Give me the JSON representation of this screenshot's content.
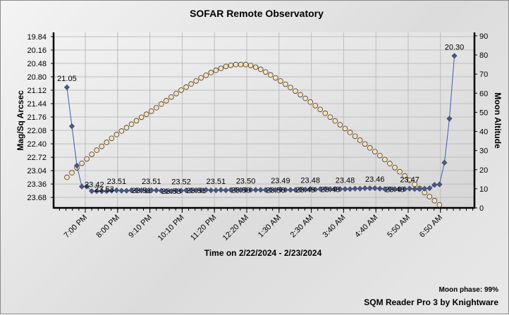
{
  "chart_data": {
    "type": "line",
    "title": "SOFAR Remote Observatory",
    "xlabel": "Time on 2/22/2024 - 2/23/2024",
    "ylabel": "Mag/Sq Arcsec",
    "y2label": "Moon Altitude",
    "y_ticks": [
      "19.84",
      "20.16",
      "20.48",
      "20.80",
      "21.12",
      "21.44",
      "21.76",
      "22.08",
      "22.40",
      "22.72",
      "23.04",
      "23.36",
      "23.68"
    ],
    "y_inverted": true,
    "ylim": [
      19.74,
      23.93
    ],
    "y2_ticks": [
      "0",
      "10",
      "20",
      "30",
      "40",
      "50",
      "60",
      "70",
      "80",
      "90"
    ],
    "y2lim": [
      0,
      91.8
    ],
    "x_tick_labels": [
      "7:00 PM",
      "8:00 PM",
      "9:10 PM",
      "10:10 PM",
      "11:20 PM",
      "12:20 AM",
      "1:30 AM",
      "2:30 AM",
      "3:40 AM",
      "4:40 AM",
      "5:50 AM",
      "6:50 AM"
    ],
    "x_units": "minutes after 7:00 PM",
    "x_start": -37,
    "x_step": 10,
    "series": [
      {
        "name": "SQM reading",
        "axis": "left",
        "color": "#4a5a85",
        "values": [
          21.05,
          21.98,
          22.92,
          23.42,
          23.42,
          23.53,
          23.53,
          23.53,
          23.53,
          23.52,
          23.51,
          23.52,
          23.52,
          23.51,
          23.51,
          23.51,
          23.52,
          23.51,
          23.51,
          23.52,
          23.53,
          23.53,
          23.52,
          23.52,
          23.51,
          23.51,
          23.51,
          23.51,
          23.5,
          23.51,
          23.51,
          23.5,
          23.51,
          23.5,
          23.5,
          23.5,
          23.5,
          23.5,
          23.5,
          23.5,
          23.5,
          23.5,
          23.5,
          23.49,
          23.5,
          23.5,
          23.5,
          23.49,
          23.49,
          23.48,
          23.49,
          23.48,
          23.48,
          23.48,
          23.48,
          23.48,
          23.48,
          23.48,
          23.47,
          23.47,
          23.46,
          23.46,
          23.46,
          23.47,
          23.48,
          23.48,
          23.48,
          23.48,
          23.48,
          23.47,
          23.48,
          23.48,
          23.47,
          23.46,
          23.38,
          23.37,
          22.85,
          21.8,
          20.3
        ]
      },
      {
        "name": "Moon altitude",
        "axis": "right",
        "color": "#ffe0b8",
        "values": [
          16,
          18.4,
          21,
          23.3,
          25.6,
          28,
          30.2,
          32.2,
          34.3,
          36.4,
          38.4,
          40.2,
          42,
          43.8,
          45.6,
          47.4,
          49,
          50.6,
          52.4,
          54.3,
          56.1,
          58,
          59.8,
          61.6,
          63.2,
          64.8,
          66.4,
          68,
          69.4,
          70.8,
          72,
          73,
          74,
          74.6,
          75,
          75,
          75,
          74.5,
          73.6,
          72.5,
          71.1,
          69.6,
          68,
          66.4,
          64.7,
          63,
          61.1,
          59.2,
          57.3,
          55.4,
          53.5,
          51.5,
          49.5,
          47.5,
          45.5,
          43.5,
          41.5,
          39.5,
          37.5,
          35.4,
          33.4,
          31.4,
          29.4,
          27.4,
          25.3,
          23.2,
          21.1,
          18.9,
          16.7,
          14.5,
          12.3,
          10.2,
          8,
          5.9,
          3.8,
          1.6
        ]
      }
    ],
    "data_labels": [
      {
        "index": 0,
        "text": "21.05",
        "pos": "above"
      },
      {
        "index": 3,
        "text": "23.42",
        "pos": "right"
      },
      {
        "index": 5,
        "text": "23.53",
        "pos": "right"
      },
      {
        "index": 10,
        "text": "23.51",
        "pos": "above"
      },
      {
        "index": 15,
        "text": "23.51",
        "pos": "on"
      },
      {
        "index": 17,
        "text": "23.51",
        "pos": "above"
      },
      {
        "index": 21,
        "text": "23.53",
        "pos": "on"
      },
      {
        "index": 23,
        "text": "23.52",
        "pos": "above"
      },
      {
        "index": 26,
        "text": "23.51",
        "pos": "on"
      },
      {
        "index": 30,
        "text": "23.51",
        "pos": "above"
      },
      {
        "index": 35,
        "text": "23.50",
        "pos": "on"
      },
      {
        "index": 36,
        "text": "23.50",
        "pos": "above"
      },
      {
        "index": 42,
        "text": "23.50",
        "pos": "on"
      },
      {
        "index": 43,
        "text": "23.49",
        "pos": "above"
      },
      {
        "index": 48,
        "text": "23.49",
        "pos": "on"
      },
      {
        "index": 49,
        "text": "23.48",
        "pos": "above"
      },
      {
        "index": 53,
        "text": "23.48",
        "pos": "on"
      },
      {
        "index": 56,
        "text": "23.48",
        "pos": "above"
      },
      {
        "index": 62,
        "text": "23.46",
        "pos": "above"
      },
      {
        "index": 66,
        "text": "23.48",
        "pos": "on"
      },
      {
        "index": 69,
        "text": "23.47",
        "pos": "above"
      },
      {
        "index": 78,
        "text": "20.30",
        "pos": "above"
      }
    ]
  },
  "footer": {
    "moon_phase": "Moon phase: 99%",
    "credit": "SQM Reader Pro 3 by Knightware"
  }
}
